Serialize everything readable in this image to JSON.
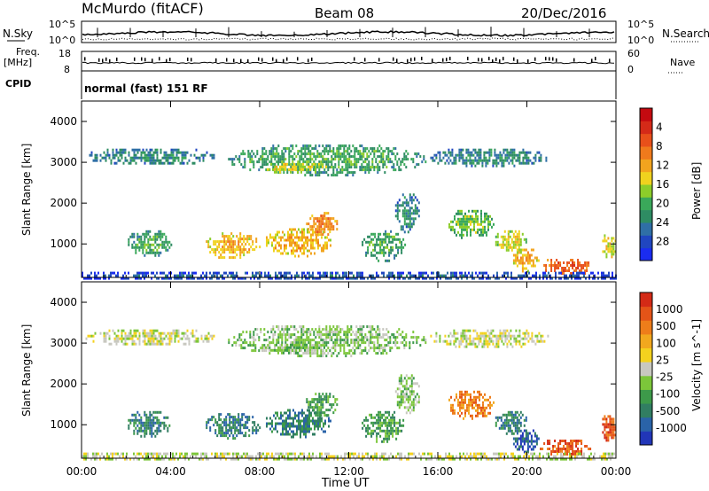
{
  "header": {
    "title": "McMurdo (fitACF)",
    "beam": "Beam 08",
    "date": "20/Dec/2016"
  },
  "top_panels": {
    "nsky_label": "N.Sky",
    "nsky_ticks": [
      "10^5",
      "10^0"
    ],
    "nsearch_label": "N.Search",
    "nsearch_ticks": [
      "10^5",
      "10^0"
    ],
    "freq_label": "Freq.",
    "freq_unit": "[MHz]",
    "freq_ticks": [
      "18",
      "8"
    ],
    "nave_label": "Nave",
    "nave_ticks": [
      "60",
      "0"
    ],
    "cpid_label": "CPID",
    "cpid_text": "normal (fast) 151 RF"
  },
  "chart_data": [
    {
      "type": "heatmap",
      "name": "power",
      "ylabel": "Slant Range [km]",
      "xlabel": "Time UT",
      "x_ticks": [
        "00:00",
        "04:00",
        "08:00",
        "12:00",
        "16:00",
        "20:00",
        "00:00"
      ],
      "x_range_hours": [
        0,
        24
      ],
      "ylim": [
        180,
        4500
      ],
      "y_ticks": [
        1000,
        2000,
        3000,
        4000
      ],
      "colorbar": {
        "label": "Power [dB]",
        "ticks": [
          "4",
          "8",
          "12",
          "16",
          "20",
          "24",
          "28"
        ],
        "colors": [
          "#1a2cf0",
          "#2046c0",
          "#2f6fa6",
          "#2e8c63",
          "#3aa85a",
          "#8ccd2a",
          "#f0d21e",
          "#f2a41e",
          "#f07a1c",
          "#e8501a",
          "#d42a18",
          "#c40a10"
        ]
      },
      "regions": [
        {
          "t": [
            0.1,
            6.0
          ],
          "r": [
            2950,
            3400
          ],
          "level": 3
        },
        {
          "t": [
            6.5,
            15.5
          ],
          "r": [
            2700,
            3500
          ],
          "level": 4
        },
        {
          "t": [
            8.0,
            11.0
          ],
          "r": [
            2750,
            3050
          ],
          "level": 6
        },
        {
          "t": [
            15.5,
            21.0
          ],
          "r": [
            2900,
            3400
          ],
          "level": 3
        },
        {
          "t": [
            2.0,
            4.0
          ],
          "r": [
            700,
            1400
          ],
          "level": 4
        },
        {
          "t": [
            5.5,
            8.0
          ],
          "r": [
            650,
            1350
          ],
          "level": 7
        },
        {
          "t": [
            8.2,
            11.2
          ],
          "r": [
            700,
            1450
          ],
          "level": 7
        },
        {
          "t": [
            10.0,
            11.5
          ],
          "r": [
            1200,
            1850
          ],
          "level": 8
        },
        {
          "t": [
            12.5,
            14.5
          ],
          "r": [
            600,
            1400
          ],
          "level": 4
        },
        {
          "t": [
            14.0,
            15.2
          ],
          "r": [
            1300,
            2300
          ],
          "level": 3
        },
        {
          "t": [
            16.4,
            18.5
          ],
          "r": [
            1150,
            1900
          ],
          "level": 5
        },
        {
          "t": [
            18.5,
            20.0
          ],
          "r": [
            800,
            1400
          ],
          "level": 6
        },
        {
          "t": [
            19.3,
            20.5
          ],
          "r": [
            350,
            950
          ],
          "level": 7
        },
        {
          "t": [
            20.5,
            23.0
          ],
          "r": [
            250,
            700
          ],
          "level": 9
        },
        {
          "t": [
            23.3,
            24.0
          ],
          "r": [
            600,
            1300
          ],
          "level": 6
        },
        {
          "t": [
            0.0,
            24.0
          ],
          "r": [
            180,
            320
          ],
          "level": 2
        }
      ]
    },
    {
      "type": "heatmap",
      "name": "velocity",
      "ylabel": "Slant Range [km]",
      "xlabel": "Time UT",
      "x_ticks": [
        "00:00",
        "04:00",
        "08:00",
        "12:00",
        "16:00",
        "20:00",
        "00:00"
      ],
      "x_range_hours": [
        0,
        24
      ],
      "ylim": [
        180,
        4500
      ],
      "y_ticks": [
        1000,
        2000,
        3000,
        4000
      ],
      "colorbar": {
        "label": "Velocity [m s^-1]",
        "ticks": [
          "1000",
          "500",
          "100",
          "25",
          "-25",
          "-100",
          "-500",
          "-1000"
        ],
        "colors": [
          "#2136b8",
          "#2a63a8",
          "#317e62",
          "#3d9a4a",
          "#7cc63a",
          "#c8c8c0",
          "#f4d21e",
          "#f2a81e",
          "#ee7d1a",
          "#e45418",
          "#d42a16"
        ]
      },
      "regions": [
        {
          "t": [
            0.1,
            6.0
          ],
          "r": [
            2950,
            3400
          ],
          "level": 5
        },
        {
          "t": [
            6.5,
            15.5
          ],
          "r": [
            2700,
            3500
          ],
          "level": 4
        },
        {
          "t": [
            8.0,
            11.0
          ],
          "r": [
            2750,
            3050
          ],
          "level": 4
        },
        {
          "t": [
            15.5,
            21.0
          ],
          "r": [
            2900,
            3400
          ],
          "level": 5
        },
        {
          "t": [
            2.0,
            4.0
          ],
          "r": [
            700,
            1400
          ],
          "level": 2
        },
        {
          "t": [
            5.5,
            8.0
          ],
          "r": [
            650,
            1350
          ],
          "level": 2
        },
        {
          "t": [
            8.2,
            11.2
          ],
          "r": [
            700,
            1450
          ],
          "level": 2
        },
        {
          "t": [
            10.0,
            11.5
          ],
          "r": [
            1200,
            1850
          ],
          "level": 3
        },
        {
          "t": [
            12.5,
            14.5
          ],
          "r": [
            600,
            1400
          ],
          "level": 3
        },
        {
          "t": [
            14.0,
            15.2
          ],
          "r": [
            1300,
            2300
          ],
          "level": 4
        },
        {
          "t": [
            16.4,
            18.5
          ],
          "r": [
            1150,
            1900
          ],
          "level": 8
        },
        {
          "t": [
            18.5,
            20.0
          ],
          "r": [
            800,
            1400
          ],
          "level": 2
        },
        {
          "t": [
            19.3,
            20.5
          ],
          "r": [
            350,
            950
          ],
          "level": 1
        },
        {
          "t": [
            20.5,
            23.0
          ],
          "r": [
            250,
            700
          ],
          "level": 9
        },
        {
          "t": [
            23.3,
            24.0
          ],
          "r": [
            600,
            1300
          ],
          "level": 9
        },
        {
          "t": [
            0.0,
            24.0
          ],
          "r": [
            180,
            320
          ],
          "level": 5
        }
      ]
    }
  ]
}
